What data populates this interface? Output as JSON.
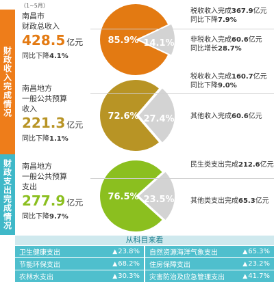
{
  "period_note": "（1~5月）",
  "tabs": {
    "revenue": "财政收入完成情况",
    "expenditure": "财政支出完成情况"
  },
  "chart_data": [
    {
      "type": "pie",
      "id": "total_revenue",
      "summary": {
        "line1": "南昌市",
        "line2": "财政总收入",
        "value": "428.5",
        "unit": "亿元",
        "yoy_prefix": "同比下降",
        "yoy_value": "4.1%"
      },
      "slices": [
        {
          "label": "税收收入",
          "value": 85.9,
          "value_label": "85.9%",
          "color": "#e37a12"
        },
        {
          "label": "非税收入",
          "value": 14.1,
          "value_label": "14.1%",
          "color": "#d3d3d3"
        }
      ],
      "annotations": [
        {
          "pre": "税收收入完成",
          "num": "367.9",
          "unit": "亿元",
          "sub_pre": "同比下降",
          "sub_num": "7.9%"
        },
        {
          "pre": "非税收入完成",
          "num": "60.6",
          "unit": "亿元",
          "sub_pre": "同比增长",
          "sub_num": "28.7%"
        }
      ]
    },
    {
      "type": "pie",
      "id": "general_budget_revenue",
      "summary": {
        "line1": "南昌地方",
        "line2": "一般公共预算",
        "line3": "收入",
        "value": "221.3",
        "unit": "亿元",
        "yoy_prefix": "同比下降",
        "yoy_value": "1.1%"
      },
      "slices": [
        {
          "label": "税收收入",
          "value": 72.6,
          "value_label": "72.6%",
          "color": "#b89425"
        },
        {
          "label": "其他收入",
          "value": 27.4,
          "value_label": "27.4%",
          "color": "#d3d3d3"
        }
      ],
      "annotations": [
        {
          "pre": "税收收入完成",
          "num": "160.7",
          "unit": "亿元",
          "sub_pre": "同比下降",
          "sub_num": "9.0%"
        },
        {
          "pre": "其他收入完成",
          "num": "60.6",
          "unit": "亿元",
          "sub_pre": "",
          "sub_num": ""
        }
      ]
    },
    {
      "type": "pie",
      "id": "general_budget_expenditure",
      "summary": {
        "line1": "南昌地方",
        "line2": "一般公共预算",
        "line3": "支出",
        "value": "277.9",
        "unit": "亿元",
        "yoy_prefix": "同比下降",
        "yoy_value": "9.7%"
      },
      "slices": [
        {
          "label": "民生类支出",
          "value": 76.5,
          "value_label": "76.5%",
          "color": "#8bbf1f"
        },
        {
          "label": "其他类支出",
          "value": 23.5,
          "value_label": "23.5%",
          "color": "#d3d3d3"
        }
      ],
      "annotations": [
        {
          "pre": "民生类支出完成",
          "num": "212.6",
          "unit": "亿元",
          "sub_pre": "",
          "sub_num": ""
        },
        {
          "pre": "其他类支出完成",
          "num": "65.3",
          "unit": "亿元",
          "sub_pre": "",
          "sub_num": ""
        }
      ]
    },
    {
      "type": "table",
      "id": "by_category",
      "title": "从科目来看",
      "items": [
        {
          "label": "卫生健康支出",
          "value": "23.8%"
        },
        {
          "label": "自然资源海洋气象支出",
          "value": "65.3%"
        },
        {
          "label": "节能环保支出",
          "value": "68.2%"
        },
        {
          "label": "住房保障支出",
          "value": "23.2%"
        },
        {
          "label": "农林水支出",
          "value": "30.3%"
        },
        {
          "label": "灾害防治及应急管理支出",
          "value": "41.7%"
        }
      ]
    }
  ],
  "colors": {
    "revenue_tab": "#ee7d1a",
    "expenditure_tab": "#3fb8c8",
    "pie1_num": "#e37a12",
    "pie2_num": "#b89425",
    "pie3_num": "#8bbf1f",
    "category_cell": "#4fbfcd"
  }
}
